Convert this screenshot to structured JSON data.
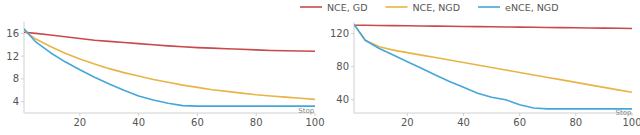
{
  "chart_data": [
    {
      "type": "line",
      "legend": "top",
      "x": [
        1,
        5,
        10,
        15,
        20,
        25,
        30,
        35,
        40,
        45,
        50,
        55,
        60,
        65,
        70,
        75,
        80,
        85,
        90,
        95,
        100
      ],
      "xlim": [
        1,
        100
      ],
      "xticks": [
        20,
        40,
        60,
        80,
        100
      ],
      "ylim": [
        2,
        18
      ],
      "yticks": [
        4,
        8,
        12,
        16
      ],
      "grid": false,
      "series": [
        {
          "name": "NCE, GD",
          "color": "#c9494b",
          "values": [
            16.2,
            16.0,
            15.7,
            15.4,
            15.1,
            14.8,
            14.6,
            14.4,
            14.2,
            14.0,
            13.8,
            13.65,
            13.5,
            13.4,
            13.3,
            13.2,
            13.1,
            13.0,
            12.95,
            12.9,
            12.85
          ]
        },
        {
          "name": "NCE, NGD",
          "color": "#e8b446",
          "values": [
            16.5,
            15.0,
            13.7,
            12.5,
            11.5,
            10.6,
            9.8,
            9.1,
            8.5,
            7.9,
            7.4,
            6.9,
            6.5,
            6.1,
            5.8,
            5.5,
            5.2,
            5.0,
            4.8,
            4.6,
            4.4
          ]
        },
        {
          "name": "eNCE, NGD",
          "color": "#45a7d9",
          "values": [
            16.8,
            14.5,
            12.6,
            11.0,
            9.6,
            8.3,
            7.1,
            6.0,
            5.0,
            4.3,
            3.7,
            3.3,
            3.2,
            3.2,
            3.2,
            3.2,
            3.2,
            3.2,
            3.2,
            3.2,
            3.2
          ]
        }
      ],
      "annotations": [
        {
          "text": "Stop",
          "x": 97,
          "y": 2.6
        }
      ]
    },
    {
      "type": "line",
      "x": [
        1,
        5,
        10,
        15,
        20,
        25,
        30,
        35,
        40,
        45,
        50,
        55,
        60,
        65,
        70,
        75,
        80,
        85,
        90,
        95,
        100
      ],
      "xlim": [
        1,
        100
      ],
      "xticks": [
        20,
        40,
        60,
        80,
        100
      ],
      "ylim": [
        24,
        134
      ],
      "yticks": [
        40,
        80,
        120
      ],
      "grid": false,
      "series": [
        {
          "color": "#c9494b",
          "values": [
            130,
            130,
            129.8,
            129.6,
            129.4,
            129.2,
            129,
            128.8,
            128.6,
            128.4,
            128.2,
            128,
            127.8,
            127.6,
            127.4,
            127.2,
            127,
            126.8,
            126.6,
            126.4,
            126.2
          ]
        },
        {
          "color": "#e8b446",
          "values": [
            131,
            112,
            104,
            100,
            97,
            94,
            91,
            88,
            85,
            82,
            79,
            76,
            73,
            70,
            67,
            64,
            61,
            58,
            55,
            52,
            49
          ]
        },
        {
          "color": "#45a7d9",
          "values": [
            131,
            112,
            102,
            94,
            86,
            78,
            70,
            62,
            55,
            48,
            43,
            40,
            34,
            30,
            29,
            29,
            29,
            29,
            29,
            29,
            29
          ]
        }
      ],
      "annotations": [
        {
          "text": "Stop",
          "x": 97,
          "y": 25.5
        }
      ]
    }
  ]
}
